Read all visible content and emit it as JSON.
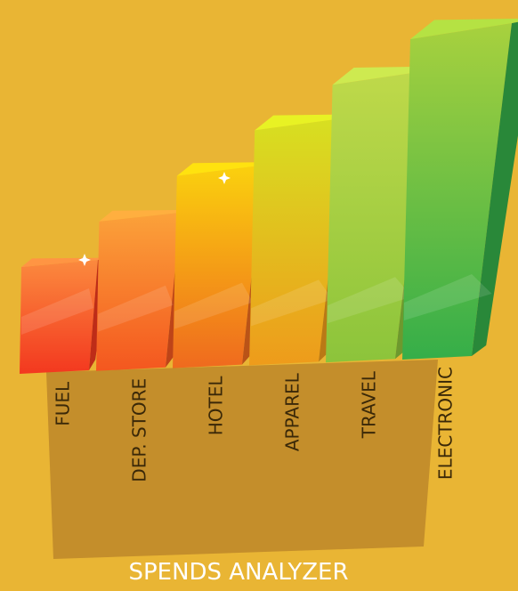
{
  "chart_data": {
    "type": "bar",
    "title": "SPENDS ANALYZER",
    "categories": [
      "FUEL",
      "DEP. STORE",
      "HOTEL",
      "APPAREL",
      "TRAVEL",
      "ELECTRONIC"
    ],
    "values": [
      1,
      2,
      3,
      4,
      5,
      6
    ],
    "bar_colors": [
      [
        "#F3381F",
        "#FB8A3E"
      ],
      [
        "#F4571F",
        "#FBA23A"
      ],
      [
        "#EF6A1E",
        "#FAD10E"
      ],
      [
        "#EE9B1B",
        "#D7E021"
      ],
      [
        "#8CC43B",
        "#BFD94A"
      ],
      [
        "#35AE49",
        "#A8D13E"
      ]
    ],
    "base_color": "#C48E2B",
    "background": "#E9B534"
  }
}
